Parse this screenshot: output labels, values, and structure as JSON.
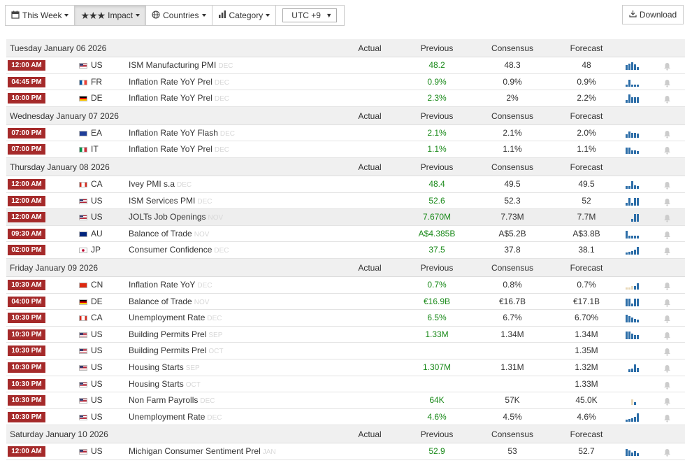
{
  "toolbar": {
    "week_label": "This Week",
    "impact_label": "Impact",
    "impact_stars": "★★★",
    "countries_label": "Countries",
    "category_label": "Category",
    "timezone_value": "UTC +9",
    "download_label": "Download"
  },
  "columns": {
    "actual": "Actual",
    "previous": "Previous",
    "consensus": "Consensus",
    "forecast": "Forecast"
  },
  "days": [
    {
      "date": "Tuesday January 06 2026",
      "events": [
        {
          "time": "12:00 AM",
          "flag": "us",
          "country": "US",
          "event": "ISM Manufacturing PMI",
          "ref": "DEC",
          "actual": "",
          "previous": "48.2",
          "consensus": "48.3",
          "forecast": "48",
          "chart": [
            7,
            9,
            11,
            8,
            4
          ],
          "chart_color": "blue",
          "highlight": false
        },
        {
          "time": "04:45 PM",
          "flag": "fr",
          "country": "FR",
          "event": "Inflation Rate YoY Prel",
          "ref": "DEC",
          "actual": "",
          "previous": "0.9%",
          "consensus": "0.9%",
          "forecast": "0.9%",
          "chart": [
            3,
            10,
            3,
            3,
            3
          ],
          "chart_color": "blue",
          "highlight": false
        },
        {
          "time": "10:00 PM",
          "flag": "de",
          "country": "DE",
          "event": "Inflation Rate YoY Prel",
          "ref": "DEC",
          "actual": "",
          "previous": "2.3%",
          "consensus": "2%",
          "forecast": "2.2%",
          "chart": [
            4,
            12,
            8,
            8,
            8
          ],
          "chart_color": "blue",
          "highlight": false
        }
      ]
    },
    {
      "date": "Wednesday January 07 2026",
      "events": [
        {
          "time": "07:00 PM",
          "flag": "ea",
          "country": "EA",
          "event": "Inflation Rate YoY Flash",
          "ref": "DEC",
          "actual": "",
          "previous": "2.1%",
          "consensus": "2.1%",
          "forecast": "2.0%",
          "chart": [
            5,
            9,
            7,
            7,
            6
          ],
          "chart_color": "blue",
          "highlight": false
        },
        {
          "time": "07:00 PM",
          "flag": "it",
          "country": "IT",
          "event": "Inflation Rate YoY Prel",
          "ref": "DEC",
          "actual": "",
          "previous": "1.1%",
          "consensus": "1.1%",
          "forecast": "1.1%",
          "chart": [
            9,
            9,
            5,
            5,
            4
          ],
          "chart_color": "blue",
          "highlight": false
        }
      ]
    },
    {
      "date": "Thursday January 08 2026",
      "events": [
        {
          "time": "12:00 AM",
          "flag": "ca",
          "country": "CA",
          "event": "Ivey PMI s.a",
          "ref": "DEC",
          "actual": "",
          "previous": "48.4",
          "consensus": "49.5",
          "forecast": "49.5",
          "chart": [
            4,
            4,
            11,
            5,
            4
          ],
          "chart_color": "blue",
          "highlight": false
        },
        {
          "time": "12:00 AM",
          "flag": "us",
          "country": "US",
          "event": "ISM Services PMI",
          "ref": "DEC",
          "actual": "",
          "previous": "52.6",
          "consensus": "52.3",
          "forecast": "52",
          "chart": [
            4,
            11,
            4,
            11,
            11
          ],
          "chart_color": "blue",
          "highlight": false
        },
        {
          "time": "12:00 AM",
          "flag": "us",
          "country": "US",
          "event": "JOLTs Job Openings",
          "ref": "NOV",
          "actual": "",
          "previous": "7.670M",
          "consensus": "7.73M",
          "forecast": "7.7M",
          "chart": [
            0,
            0,
            4,
            11,
            11
          ],
          "chart_color": "blue",
          "highlight": true
        },
        {
          "time": "09:30 AM",
          "flag": "au",
          "country": "AU",
          "event": "Balance of Trade",
          "ref": "NOV",
          "actual": "",
          "previous": "A$4.385B",
          "consensus": "A$5.2B",
          "forecast": "A$3.8B",
          "chart": [
            11,
            4,
            4,
            4,
            4
          ],
          "chart_color": "blue",
          "highlight": false
        },
        {
          "time": "02:00 PM",
          "flag": "jp",
          "country": "JP",
          "event": "Consumer Confidence",
          "ref": "DEC",
          "actual": "",
          "previous": "37.5",
          "consensus": "37.8",
          "forecast": "38.1",
          "chart": [
            3,
            4,
            5,
            7,
            11
          ],
          "chart_color": "blue",
          "highlight": false
        }
      ]
    },
    {
      "date": "Friday January 09 2026",
      "events": [
        {
          "time": "10:30 AM",
          "flag": "cn",
          "country": "CN",
          "event": "Inflation Rate YoY",
          "ref": "DEC",
          "actual": "",
          "previous": "0.7%",
          "consensus": "0.8%",
          "forecast": "0.7%",
          "chart": [
            3,
            3,
            5,
            5,
            9
          ],
          "chart_color": "mixed",
          "highlight": false
        },
        {
          "time": "04:00 PM",
          "flag": "de",
          "country": "DE",
          "event": "Balance of Trade",
          "ref": "NOV",
          "actual": "",
          "previous": "€16.9B",
          "consensus": "€16.7B",
          "forecast": "€17.1B",
          "chart": [
            11,
            11,
            4,
            11,
            11
          ],
          "chart_color": "blue",
          "highlight": false
        },
        {
          "time": "10:30 PM",
          "flag": "ca",
          "country": "CA",
          "event": "Unemployment Rate",
          "ref": "DEC",
          "actual": "",
          "previous": "6.5%",
          "consensus": "6.7%",
          "forecast": "6.70%",
          "chart": [
            11,
            9,
            7,
            5,
            4
          ],
          "chart_color": "blue",
          "highlight": false
        },
        {
          "time": "10:30 PM",
          "flag": "us",
          "country": "US",
          "event": "Building Permits Prel",
          "ref": "SEP",
          "actual": "",
          "previous": "1.33M",
          "consensus": "1.34M",
          "forecast": "1.34M",
          "chart": [
            11,
            11,
            8,
            6,
            6
          ],
          "chart_color": "blue",
          "highlight": false
        },
        {
          "time": "10:30 PM",
          "flag": "us",
          "country": "US",
          "event": "Building Permits Prel",
          "ref": "OCT",
          "actual": "",
          "previous": "",
          "consensus": "",
          "forecast": "1.35M",
          "chart": [],
          "chart_color": "blue",
          "highlight": false
        },
        {
          "time": "10:30 PM",
          "flag": "us",
          "country": "US",
          "event": "Housing Starts",
          "ref": "SEP",
          "actual": "",
          "previous": "1.307M",
          "consensus": "1.31M",
          "forecast": "1.32M",
          "chart": [
            0,
            4,
            5,
            11,
            6
          ],
          "chart_color": "blue",
          "highlight": false
        },
        {
          "time": "10:30 PM",
          "flag": "us",
          "country": "US",
          "event": "Housing Starts",
          "ref": "OCT",
          "actual": "",
          "previous": "",
          "consensus": "",
          "forecast": "1.33M",
          "chart": [],
          "chart_color": "blue",
          "highlight": false
        },
        {
          "time": "10:30 PM",
          "flag": "us",
          "country": "US",
          "event": "Non Farm Payrolls",
          "ref": "DEC",
          "actual": "",
          "previous": "64K",
          "consensus": "57K",
          "forecast": "45.0K",
          "chart": [
            0,
            0,
            8,
            4,
            0
          ],
          "chart_color": "mixed",
          "highlight": false
        },
        {
          "time": "10:30 PM",
          "flag": "us",
          "country": "US",
          "event": "Unemployment Rate",
          "ref": "DEC",
          "actual": "",
          "previous": "4.6%",
          "consensus": "4.5%",
          "forecast": "4.6%",
          "chart": [
            3,
            4,
            5,
            7,
            12
          ],
          "chart_color": "blue",
          "highlight": false
        }
      ]
    },
    {
      "date": "Saturday January 10 2026",
      "events": [
        {
          "time": "12:00 AM",
          "flag": "us",
          "country": "US",
          "event": "Michigan Consumer Sentiment Prel",
          "ref": "JAN",
          "actual": "",
          "previous": "52.9",
          "consensus": "53",
          "forecast": "52.7",
          "chart": [
            10,
            8,
            5,
            7,
            4
          ],
          "chart_color": "blue",
          "highlight": false
        }
      ]
    }
  ]
}
